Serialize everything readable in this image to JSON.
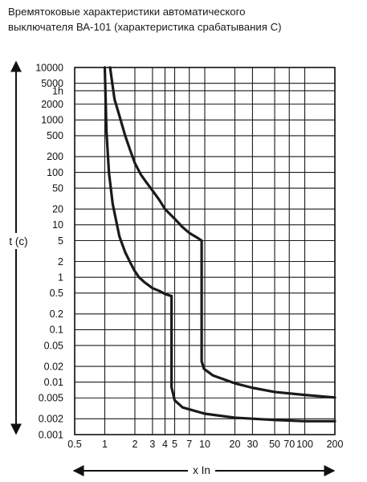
{
  "chart_data": {
    "type": "line",
    "title_line1": "Времятоковые характеристики автоматического",
    "title_line2": "выключателя ВА-101 (характеристика срабатывания С)",
    "ylabel": "t (c)",
    "xlabel": "x In",
    "x_scale": "log",
    "y_scale": "log",
    "xlim": [
      0.5,
      200
    ],
    "ylim": [
      0.001,
      10000
    ],
    "grid": true,
    "x_ticks": [
      {
        "value": 0.5,
        "label": "0.5"
      },
      {
        "value": 1,
        "label": "1"
      },
      {
        "value": 2,
        "label": "2"
      },
      {
        "value": 3,
        "label": "3"
      },
      {
        "value": 4,
        "label": "4"
      },
      {
        "value": 5,
        "label": "5"
      },
      {
        "value": 7,
        "label": "7"
      },
      {
        "value": 10,
        "label": "10"
      },
      {
        "value": 20,
        "label": "20"
      },
      {
        "value": 30,
        "label": "30"
      },
      {
        "value": 50,
        "label": "50"
      },
      {
        "value": 70,
        "label": "70"
      },
      {
        "value": 100,
        "label": "100"
      },
      {
        "value": 200,
        "label": "200"
      }
    ],
    "y_ticks": [
      {
        "value": 10000,
        "label": "10000"
      },
      {
        "value": 5000,
        "label": "5000"
      },
      {
        "value": 3600,
        "label": "1h"
      },
      {
        "value": 2000,
        "label": "2000"
      },
      {
        "value": 1000,
        "label": "1000"
      },
      {
        "value": 500,
        "label": "500"
      },
      {
        "value": 200,
        "label": "200"
      },
      {
        "value": 100,
        "label": "100"
      },
      {
        "value": 50,
        "label": "50"
      },
      {
        "value": 20,
        "label": "20"
      },
      {
        "value": 10,
        "label": "10"
      },
      {
        "value": 5,
        "label": "5"
      },
      {
        "value": 2,
        "label": "2"
      },
      {
        "value": 1,
        "label": "1"
      },
      {
        "value": 0.5,
        "label": "0.5"
      },
      {
        "value": 0.2,
        "label": "0.2"
      },
      {
        "value": 0.1,
        "label": "0.1"
      },
      {
        "value": 0.05,
        "label": "0.05"
      },
      {
        "value": 0.02,
        "label": "0.02"
      },
      {
        "value": 0.01,
        "label": "0.01"
      },
      {
        "value": 0.005,
        "label": "0.005"
      },
      {
        "value": 0.002,
        "label": "0.002"
      },
      {
        "value": 0.001,
        "label": "0.001"
      }
    ],
    "grid_x": [
      0.5,
      1,
      2,
      3,
      4,
      5,
      7,
      10,
      20,
      30,
      50,
      70,
      100,
      200
    ],
    "grid_y": [
      10000,
      5000,
      3600,
      2000,
      1000,
      500,
      200,
      100,
      50,
      20,
      10,
      5,
      2,
      1,
      0.5,
      0.2,
      0.1,
      0.05,
      0.02,
      0.01,
      0.005,
      0.002,
      0.001
    ],
    "series": [
      {
        "color": "#1a1a1a",
        "points": [
          [
            1.0,
            10000
          ],
          [
            1.04,
            600
          ],
          [
            1.1,
            100
          ],
          [
            1.2,
            25
          ],
          [
            1.4,
            6
          ],
          [
            1.6,
            3
          ],
          [
            1.8,
            1.9
          ],
          [
            2.0,
            1.3
          ],
          [
            2.2,
            1.0
          ],
          [
            2.5,
            0.8
          ],
          [
            3.0,
            0.62
          ],
          [
            3.5,
            0.55
          ],
          [
            4.0,
            0.48
          ],
          [
            4.6,
            0.44
          ],
          [
            4.65,
            0.44
          ],
          [
            4.65,
            0.008
          ],
          [
            5.0,
            0.0045
          ],
          [
            6.0,
            0.0033
          ],
          [
            10,
            0.0025
          ],
          [
            20,
            0.0021
          ],
          [
            50,
            0.0019
          ],
          [
            100,
            0.0018
          ],
          [
            200,
            0.0018
          ]
        ]
      },
      {
        "color": "#1a1a1a",
        "points": [
          [
            1.13,
            10000
          ],
          [
            1.25,
            2500
          ],
          [
            1.4,
            1200
          ],
          [
            1.6,
            500
          ],
          [
            1.8,
            260
          ],
          [
            2.0,
            150
          ],
          [
            2.3,
            90
          ],
          [
            2.6,
            65
          ],
          [
            3.0,
            45
          ],
          [
            3.5,
            30
          ],
          [
            4.0,
            20
          ],
          [
            5.0,
            13
          ],
          [
            6.0,
            9
          ],
          [
            7.0,
            7
          ],
          [
            8.5,
            5.6
          ],
          [
            9.3,
            5.0
          ],
          [
            9.3,
            0.025
          ],
          [
            9.8,
            0.018
          ],
          [
            12,
            0.0135
          ],
          [
            20,
            0.0095
          ],
          [
            30,
            0.0078
          ],
          [
            50,
            0.0065
          ],
          [
            100,
            0.0057
          ],
          [
            200,
            0.0051
          ]
        ]
      }
    ]
  }
}
